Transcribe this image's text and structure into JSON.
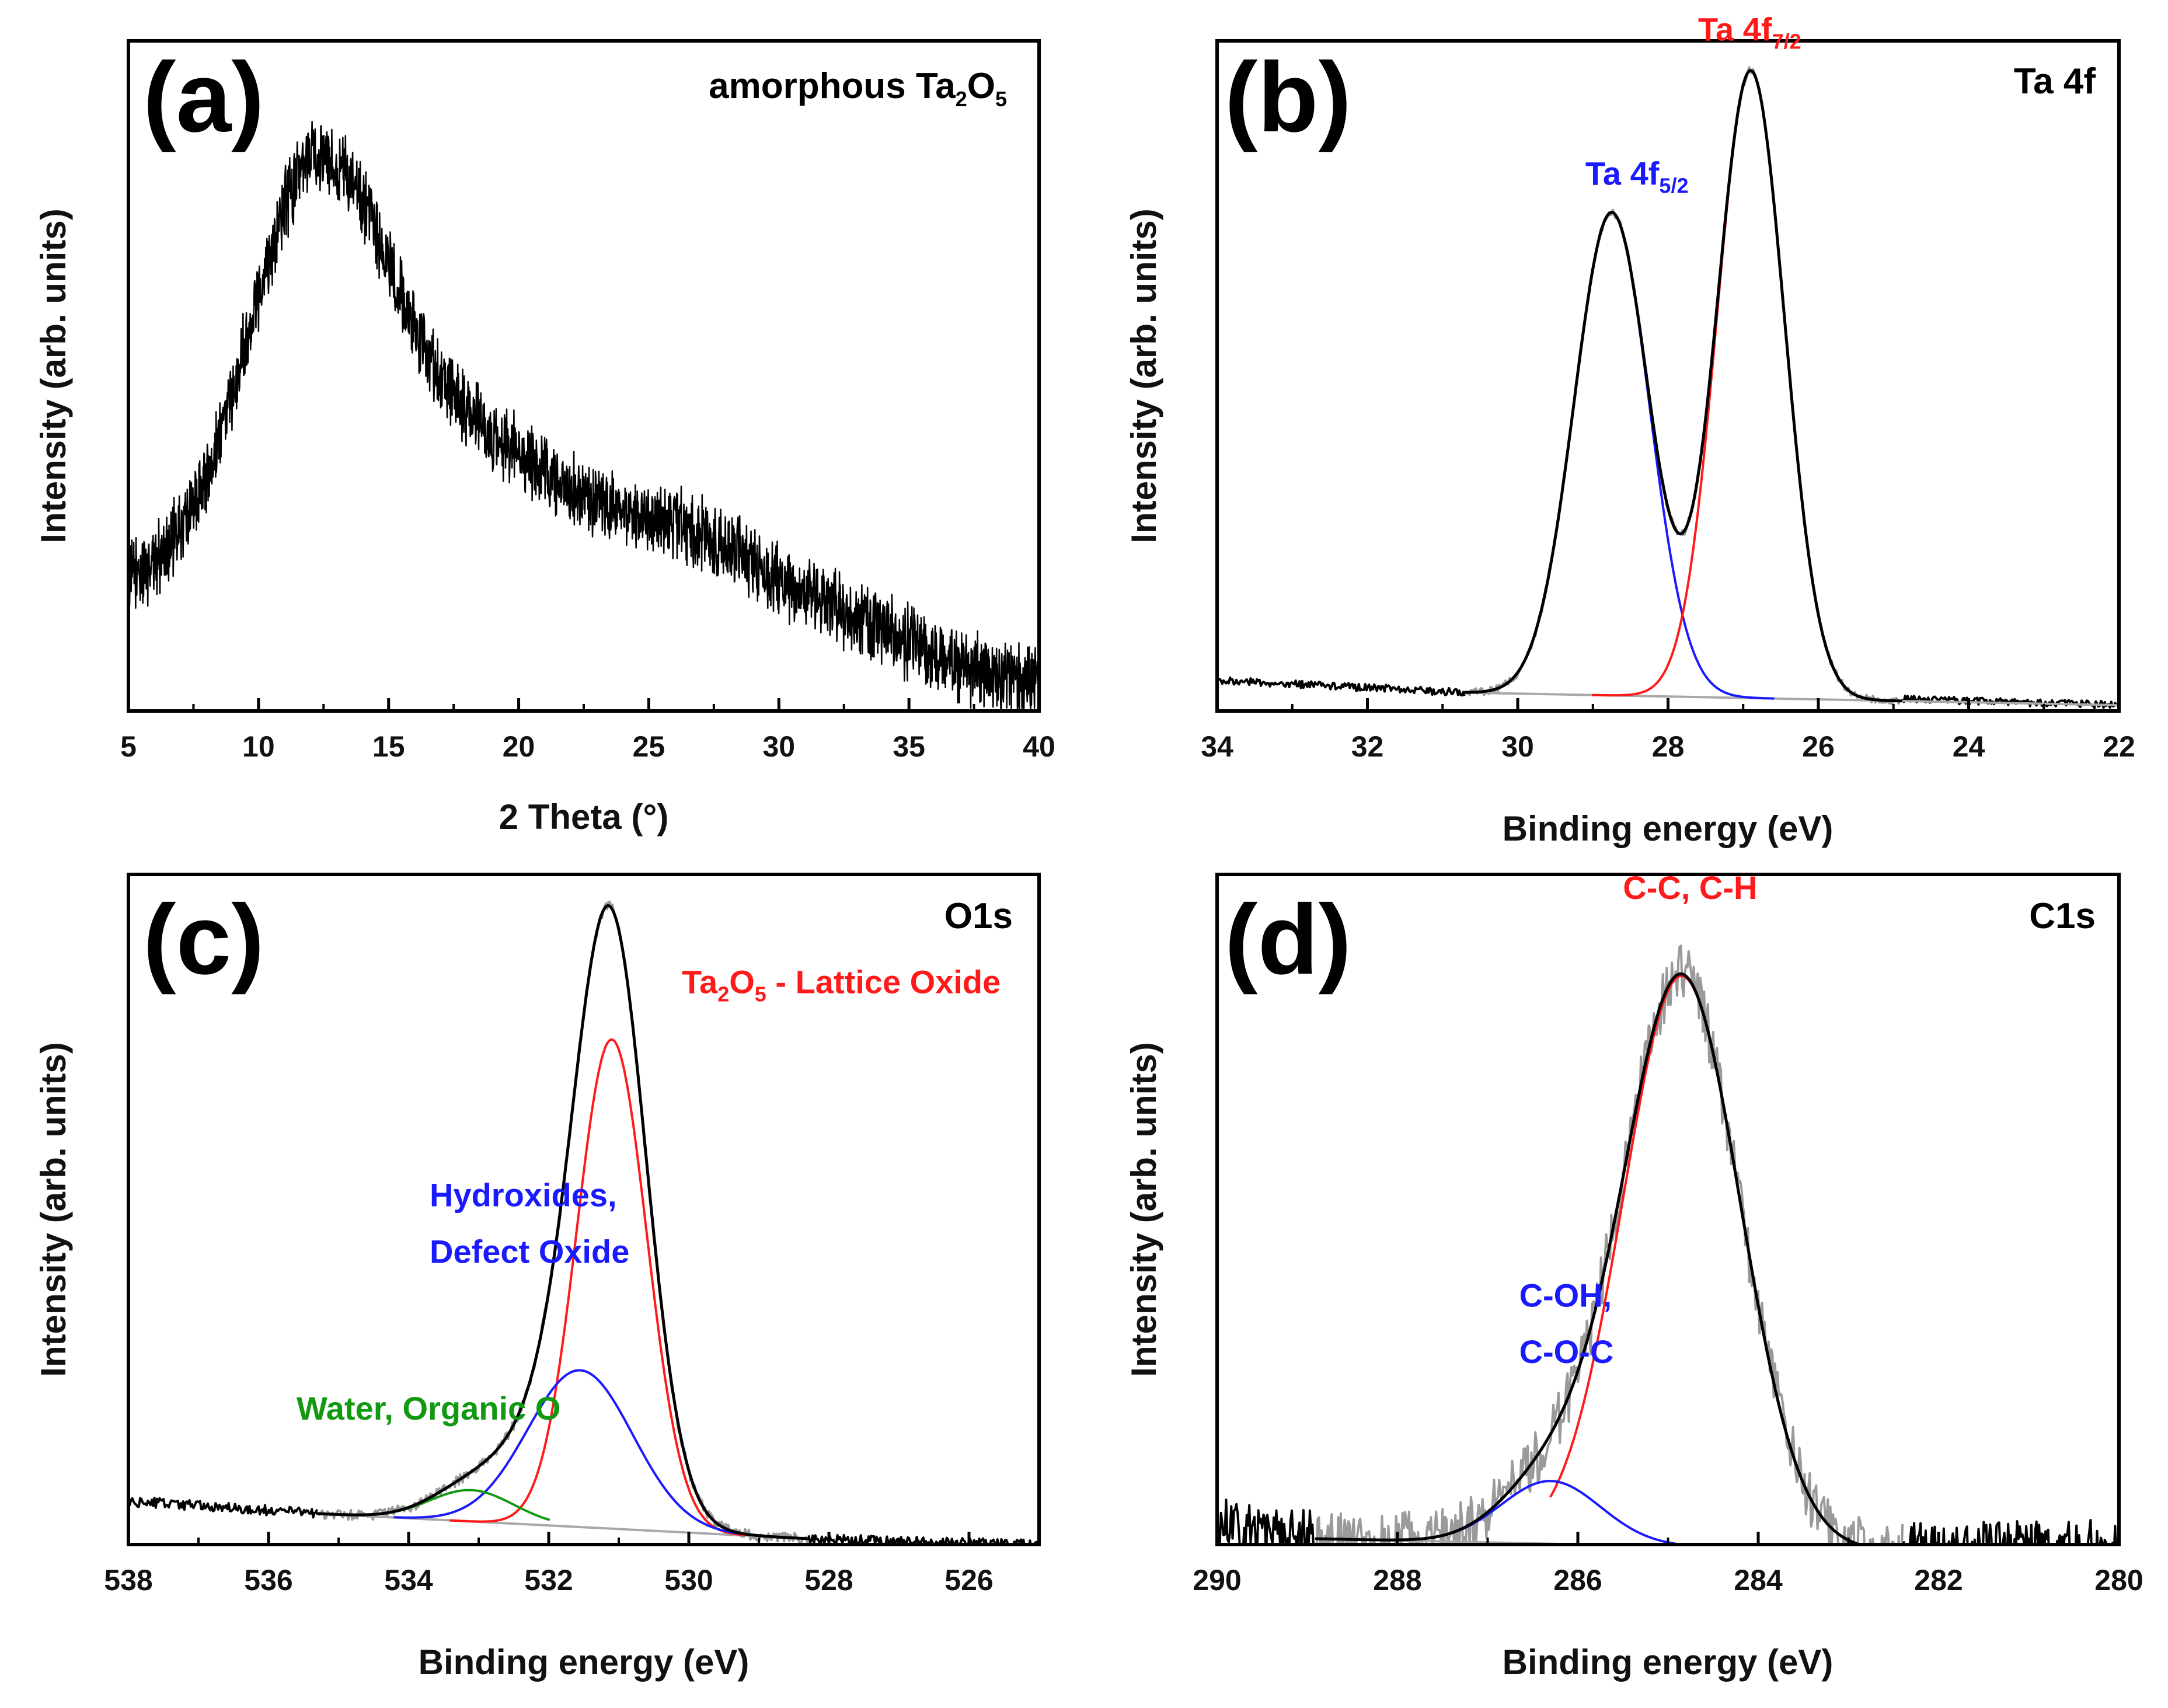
{
  "colors": {
    "data": "#000000",
    "raw": "#9a9a9a",
    "background_line": "#a8a8a8",
    "red": "#ff1a1a",
    "blue": "#1a1aff",
    "green": "#119911"
  },
  "chart_data": [
    {
      "id": "a",
      "type": "line",
      "panel_label": "(a)",
      "title": "amorphous Ta2O5",
      "title_parts": {
        "main": "amorphous Ta",
        "sub1": "2",
        "mid": "O",
        "sub2": "5"
      },
      "xlabel": "2 Theta (°)",
      "ylabel": "Intensity (arb. units)",
      "xlim": [
        5,
        40
      ],
      "xticks": [
        5,
        10,
        15,
        20,
        25,
        30,
        35,
        40
      ],
      "ylim": [
        0,
        1.05
      ],
      "yticks_shown": false,
      "series": [
        {
          "name": "XRD pattern",
          "color": "#000000",
          "envelope_points": [
            [
              5,
              0.2
            ],
            [
              6,
              0.23
            ],
            [
              7,
              0.28
            ],
            [
              8,
              0.36
            ],
            [
              9,
              0.5
            ],
            [
              10,
              0.66
            ],
            [
              11,
              0.8
            ],
            [
              12,
              0.88
            ],
            [
              13,
              0.87
            ],
            [
              14,
              0.8
            ],
            [
              15,
              0.7
            ],
            [
              16,
              0.6
            ],
            [
              17,
              0.52
            ],
            [
              18,
              0.47
            ],
            [
              19,
              0.43
            ],
            [
              20,
              0.4
            ],
            [
              21,
              0.37
            ],
            [
              22,
              0.34
            ],
            [
              23,
              0.32
            ],
            [
              24,
              0.31
            ],
            [
              25,
              0.3
            ],
            [
              26,
              0.29
            ],
            [
              27,
              0.27
            ],
            [
              28,
              0.25
            ],
            [
              29,
              0.23
            ],
            [
              30,
              0.2
            ],
            [
              31,
              0.18
            ],
            [
              32,
              0.16
            ],
            [
              33,
              0.14
            ],
            [
              34,
              0.12
            ],
            [
              35,
              0.1
            ],
            [
              36,
              0.08
            ],
            [
              37,
              0.06
            ],
            [
              38,
              0.05
            ],
            [
              39,
              0.04
            ],
            [
              40,
              0.03
            ]
          ],
          "noise_amplitude": 0.05
        }
      ]
    },
    {
      "id": "b",
      "type": "line",
      "panel_label": "(b)",
      "title": "Ta 4f",
      "xlabel": "Binding energy (eV)",
      "ylabel": "Intensity (arb. units)",
      "xlim": [
        34,
        22
      ],
      "xticks": [
        34,
        32,
        30,
        28,
        26,
        24,
        22
      ],
      "ylim": [
        0,
        1.05
      ],
      "yticks_shown": false,
      "annotations": [
        {
          "text": "Ta 4f5/2",
          "main": "Ta 4f",
          "sub": "5/2",
          "color": "#1a1aff",
          "x": 29.1,
          "y": 0.83
        },
        {
          "text": "Ta 4f7/2",
          "main": "Ta 4f",
          "sub": "7/2",
          "color": "#ff1a1a",
          "x": 27.6,
          "y": 1.06
        }
      ],
      "series": [
        {
          "name": "Ta 4f5/2",
          "color": "#1a1aff",
          "component": {
            "center": 28.75,
            "amplitude": 0.77,
            "sigma": 0.5,
            "xrange": [
              29.7,
              26.6
            ]
          }
        },
        {
          "name": "Ta 4f7/2",
          "color": "#ff1a1a",
          "component": {
            "center": 26.9,
            "amplitude": 1.0,
            "sigma": 0.45,
            "xrange": [
              29.0,
              25.0
            ]
          }
        },
        {
          "name": "Envelope fit",
          "color": "#000000",
          "role": "envelope",
          "xrange": [
            30.7,
            24.9
          ]
        },
        {
          "name": "Background",
          "color": "#a8a8a8",
          "points": [
            [
              30.7,
              0.02
            ],
            [
              22.0,
              0.0
            ]
          ]
        },
        {
          "name": "Measured",
          "color": "#000000",
          "role": "raw",
          "baseline": [
            [
              34,
              0.04
            ],
            [
              30.7,
              0.02
            ],
            [
              24.9,
              0.01
            ],
            [
              22,
              0.0
            ]
          ],
          "noise_amplitude": 0.006
        }
      ]
    },
    {
      "id": "c",
      "type": "line",
      "panel_label": "(c)",
      "title": "O1s",
      "xlabel": "Binding energy (eV)",
      "ylabel": "Intensity (arb. units)",
      "xlim": [
        538,
        525
      ],
      "xticks": [
        538,
        536,
        534,
        532,
        530,
        528,
        526
      ],
      "ylim": [
        0,
        1.05
      ],
      "yticks_shown": false,
      "annotations": [
        {
          "text": "Ta2O5 - Lattice Oxide",
          "parts": {
            "main": "Ta",
            "sub1": "2",
            "mid": "O",
            "sub2": "5",
            "rest": " - Lattice Oxide"
          },
          "color": "#ff1a1a",
          "x": 530.1,
          "y": 0.87
        },
        {
          "text": "Hydroxides,",
          "color": "#1a1aff",
          "x": 533.7,
          "y": 0.53
        },
        {
          "text": "Defect Oxide",
          "color": "#1a1aff",
          "x": 533.7,
          "y": 0.44
        },
        {
          "text": "Water, Organic O",
          "color": "#119911",
          "x": 535.6,
          "y": 0.19
        }
      ],
      "series": [
        {
          "name": "Lattice Oxide",
          "color": "#ff1a1a",
          "component": {
            "center": 531.1,
            "amplitude": 0.78,
            "sigma": 0.5,
            "xrange": [
              533.4,
              529.2
            ]
          }
        },
        {
          "name": "Hydroxides, Defect Oxide",
          "color": "#1a1aff",
          "component": {
            "center": 531.55,
            "amplitude": 0.25,
            "sigma": 0.75,
            "xrange": [
              534.2,
              529.3
            ]
          }
        },
        {
          "name": "Water, Organic O",
          "color": "#119911",
          "component": {
            "center": 533.1,
            "amplitude": 0.05,
            "sigma": 0.6,
            "xrange": [
              534.8,
              532.0
            ]
          }
        },
        {
          "name": "Envelope fit",
          "color": "#000000",
          "role": "envelope",
          "xrange": [
            535.3,
            528.3
          ]
        },
        {
          "name": "Background",
          "color": "#a8a8a8",
          "points": [
            [
              535.3,
              0.04
            ],
            [
              528.3,
              0.0
            ]
          ]
        },
        {
          "name": "Measured",
          "color": "#000000",
          "role": "raw",
          "baseline": [
            [
              538,
              0.06
            ],
            [
              535.3,
              0.04
            ],
            [
              528.3,
              0.0
            ],
            [
              525,
              -0.01
            ]
          ],
          "noise_amplitude": 0.008
        }
      ]
    },
    {
      "id": "d",
      "type": "line",
      "panel_label": "(d)",
      "title": "C1s",
      "xlabel": "Binding energy (eV)",
      "ylabel": "Intensity (arb. units)",
      "xlim": [
        290,
        280
      ],
      "xticks": [
        290,
        288,
        286,
        284,
        282,
        280
      ],
      "ylim": [
        0,
        1.05
      ],
      "yticks_shown": false,
      "annotations": [
        {
          "text": "C-C, C-H",
          "color": "#ff1a1a",
          "x": 285.5,
          "y": 1.02
        },
        {
          "text": "C-OH,",
          "color": "#1a1aff",
          "x": 286.65,
          "y": 0.37
        },
        {
          "text": "C-O-C",
          "color": "#1a1aff",
          "x": 286.65,
          "y": 0.28
        }
      ],
      "series": [
        {
          "name": "C-C, C-H",
          "color": "#ff1a1a",
          "component": {
            "center": 284.85,
            "amplitude": 0.91,
            "sigma": 0.65,
            "xrange": [
              286.3,
              283.4
            ]
          }
        },
        {
          "name": "C-OH, C-O-C",
          "color": "#1a1aff",
          "component": {
            "center": 286.3,
            "amplitude": 0.1,
            "sigma": 0.55,
            "xrange": [
              287.8,
              284.6
            ]
          }
        },
        {
          "name": "Envelope fit",
          "color": "#000000",
          "role": "envelope",
          "xrange": [
            288.9,
            282.4
          ]
        },
        {
          "name": "Background",
          "color": "#a8a8a8",
          "points": [
            [
              288.9,
              0.0
            ],
            [
              282.4,
              -0.02
            ]
          ]
        },
        {
          "name": "Measured",
          "color": "#000000",
          "role": "raw",
          "baseline": [
            [
              290,
              0.02
            ],
            [
              288.9,
              0.0
            ],
            [
              282.4,
              -0.02
            ],
            [
              280,
              -0.01
            ]
          ],
          "noise_amplitude": 0.045
        }
      ]
    }
  ]
}
